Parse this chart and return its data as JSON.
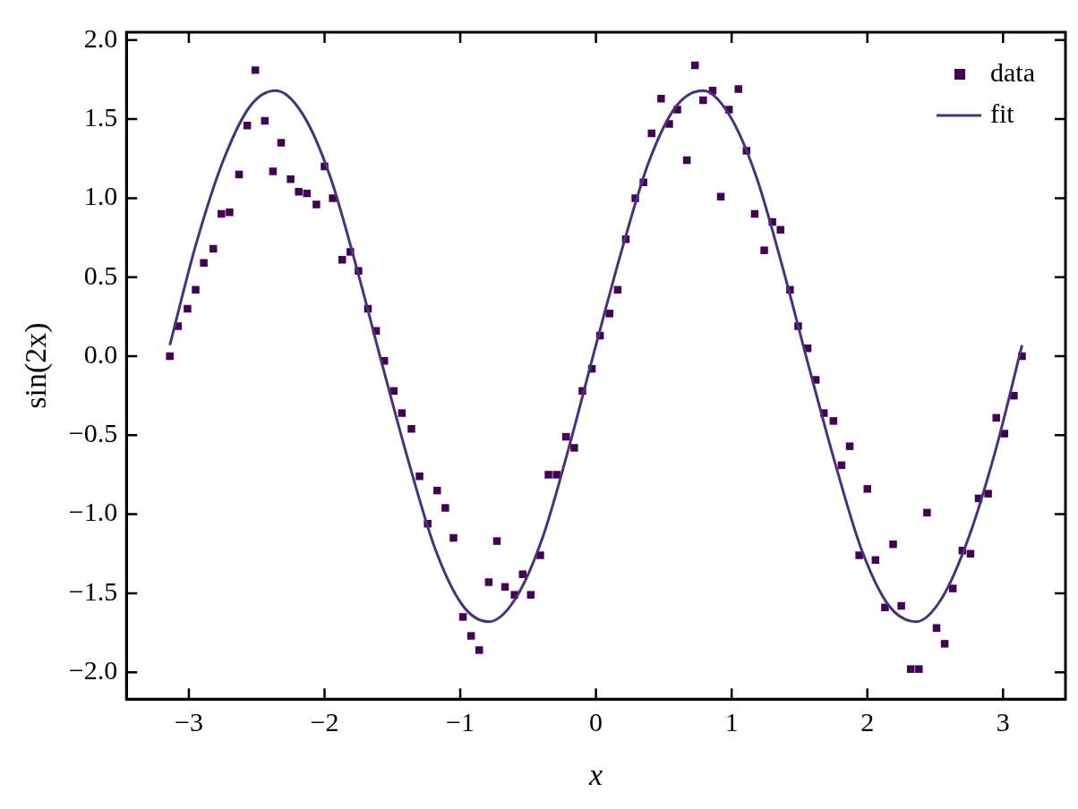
{
  "chart_data": {
    "type": "scatter",
    "xlabel": "x",
    "ylabel": "sin(2x)",
    "xlim": [
      -3.46,
      3.46
    ],
    "ylim": [
      -2.17,
      2.05
    ],
    "xticks": [
      {
        "value": -3,
        "label": "−3"
      },
      {
        "value": -2,
        "label": "−2"
      },
      {
        "value": -1,
        "label": "−1"
      },
      0,
      1,
      2,
      3
    ],
    "yticks": [
      {
        "value": -2,
        "label": "−2.0"
      },
      {
        "value": -1.5,
        "label": "−1.5"
      },
      {
        "value": -1,
        "label": "−1.0"
      },
      {
        "value": -0.5,
        "label": "−0.5"
      },
      {
        "value": 0,
        "label": "0.0"
      },
      {
        "value": 0.5,
        "label": "0.5"
      },
      {
        "value": 1,
        "label": "1.0"
      },
      {
        "value": 1.5,
        "label": "1.5"
      },
      {
        "value": 2,
        "label": "2.0"
      }
    ],
    "grid": false,
    "legend": "top right",
    "series": [
      {
        "name": "data",
        "type": "scatter",
        "marker": "square",
        "color": "#440154",
        "x": [
          -3.14,
          -3.08,
          -3.01,
          -2.95,
          -2.89,
          -2.82,
          -2.76,
          -2.7,
          -2.63,
          -2.57,
          -2.51,
          -2.44,
          -2.38,
          -2.32,
          -2.25,
          -2.19,
          -2.13,
          -2.06,
          -2.0,
          -1.94,
          -1.87,
          -1.81,
          -1.75,
          -1.68,
          -1.62,
          -1.56,
          -1.49,
          -1.43,
          -1.36,
          -1.3,
          -1.24,
          -1.17,
          -1.11,
          -1.05,
          -0.98,
          -0.92,
          -0.86,
          -0.79,
          -0.73,
          -0.67,
          -0.6,
          -0.54,
          -0.48,
          -0.41,
          -0.35,
          -0.29,
          -0.22,
          -0.16,
          -0.1,
          -0.03,
          0.03,
          0.1,
          0.16,
          0.22,
          0.29,
          0.35,
          0.41,
          0.48,
          0.54,
          0.6,
          0.67,
          0.73,
          0.79,
          0.86,
          0.92,
          0.98,
          1.05,
          1.11,
          1.17,
          1.24,
          1.3,
          1.36,
          1.43,
          1.49,
          1.56,
          1.62,
          1.68,
          1.75,
          1.81,
          1.87,
          1.94,
          2.0,
          2.06,
          2.13,
          2.19,
          2.25,
          2.32,
          2.38,
          2.44,
          2.51,
          2.57,
          2.63,
          2.7,
          2.76,
          2.82,
          2.89,
          2.95,
          3.01,
          3.08,
          3.14
        ],
        "values": [
          0.0,
          0.19,
          0.3,
          0.42,
          0.59,
          0.68,
          0.9,
          0.91,
          1.15,
          1.46,
          1.81,
          1.49,
          1.17,
          1.35,
          1.12,
          1.04,
          1.03,
          0.96,
          1.2,
          1.0,
          0.61,
          0.66,
          0.54,
          0.3,
          0.16,
          -0.03,
          -0.22,
          -0.36,
          -0.46,
          -0.76,
          -1.06,
          -0.85,
          -0.96,
          -1.15,
          -1.65,
          -1.77,
          -1.86,
          -1.43,
          -1.17,
          -1.46,
          -1.51,
          -1.38,
          -1.51,
          -1.26,
          -0.75,
          -0.75,
          -0.51,
          -0.58,
          -0.22,
          -0.08,
          0.13,
          0.27,
          0.42,
          0.74,
          1.0,
          1.1,
          1.41,
          1.63,
          1.47,
          1.56,
          1.24,
          1.84,
          1.62,
          1.68,
          1.01,
          1.56,
          1.69,
          1.3,
          0.9,
          0.67,
          0.85,
          0.8,
          0.42,
          0.19,
          0.05,
          -0.15,
          -0.36,
          -0.41,
          -0.69,
          -0.57,
          -1.26,
          -0.84,
          -1.29,
          -1.59,
          -1.19,
          -1.58,
          -1.98,
          -1.98,
          -0.99,
          -1.72,
          -1.82,
          -1.47,
          -1.23,
          -1.25,
          -0.9,
          -0.87,
          -0.39,
          -0.49,
          -0.25,
          0.0
        ]
      },
      {
        "name": "fit",
        "type": "line",
        "marker": "none",
        "color": "#46327e",
        "line_style": "solid",
        "x": [
          -3.14,
          -2.95,
          -2.75,
          -2.55,
          -2.36,
          -2.16,
          -1.96,
          -1.77,
          -1.57,
          -1.37,
          -1.18,
          -0.98,
          -0.79,
          -0.59,
          -0.39,
          -0.2,
          0,
          0.2,
          0.39,
          0.59,
          0.79,
          0.98,
          1.18,
          1.37,
          1.57,
          1.77,
          1.96,
          2.16,
          2.36,
          2.55,
          2.75,
          2.95,
          3.14
        ],
        "values": [
          0.07,
          0.7,
          1.23,
          1.58,
          1.68,
          1.53,
          1.14,
          0.58,
          -0.07,
          -0.7,
          -1.23,
          -1.58,
          -1.68,
          -1.53,
          -1.14,
          -0.58,
          0.07,
          0.7,
          1.23,
          1.58,
          1.68,
          1.53,
          1.14,
          0.58,
          -0.07,
          -0.7,
          -1.23,
          -1.58,
          -1.68,
          -1.53,
          -1.14,
          -0.58,
          0.07
        ]
      }
    ]
  }
}
